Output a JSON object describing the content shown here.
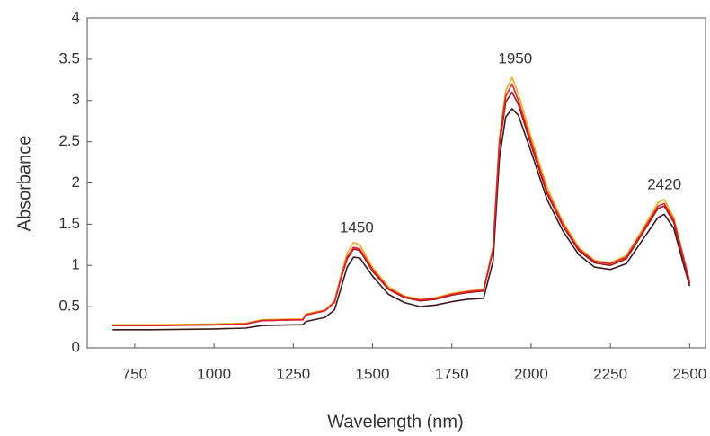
{
  "chart_data": {
    "type": "line",
    "xlabel": "Wavelength (nm)",
    "ylabel": "Absorbance",
    "xlim": [
      600,
      2550
    ],
    "ylim": [
      0,
      4
    ],
    "xticks": [
      750,
      1000,
      1250,
      1500,
      1750,
      2000,
      2250,
      2500
    ],
    "yticks": [
      0,
      0.5,
      1,
      1.5,
      2,
      2.5,
      3,
      3.5,
      4
    ],
    "grid": false,
    "x": [
      680,
      800,
      1000,
      1100,
      1150,
      1250,
      1280,
      1290,
      1350,
      1380,
      1400,
      1420,
      1440,
      1460,
      1500,
      1550,
      1600,
      1650,
      1700,
      1750,
      1800,
      1850,
      1880,
      1900,
      1920,
      1940,
      1960,
      2000,
      2050,
      2100,
      2150,
      2200,
      2250,
      2300,
      2350,
      2400,
      2420,
      2450,
      2480,
      2500
    ],
    "series": [
      {
        "color": "#3a1a1a",
        "values": [
          0.22,
          0.22,
          0.23,
          0.24,
          0.27,
          0.28,
          0.28,
          0.32,
          0.37,
          0.46,
          0.72,
          0.98,
          1.1,
          1.09,
          0.87,
          0.65,
          0.55,
          0.5,
          0.52,
          0.56,
          0.59,
          0.6,
          1.05,
          2.3,
          2.8,
          2.9,
          2.82,
          2.38,
          1.8,
          1.42,
          1.13,
          0.98,
          0.95,
          1.02,
          1.3,
          1.58,
          1.62,
          1.45,
          1.02,
          0.75
        ]
      },
      {
        "color": "#e8b020",
        "values": [
          0.28,
          0.28,
          0.29,
          0.3,
          0.34,
          0.35,
          0.35,
          0.41,
          0.46,
          0.57,
          0.88,
          1.15,
          1.28,
          1.25,
          0.98,
          0.74,
          0.63,
          0.59,
          0.61,
          0.66,
          0.69,
          0.71,
          1.22,
          2.55,
          3.12,
          3.28,
          3.08,
          2.56,
          1.95,
          1.53,
          1.22,
          1.06,
          1.03,
          1.12,
          1.43,
          1.76,
          1.8,
          1.58,
          1.12,
          0.8
        ]
      },
      {
        "color": "#a01818",
        "values": [
          0.27,
          0.27,
          0.28,
          0.29,
          0.33,
          0.34,
          0.34,
          0.4,
          0.45,
          0.55,
          0.84,
          1.08,
          1.2,
          1.18,
          0.93,
          0.71,
          0.61,
          0.57,
          0.59,
          0.64,
          0.67,
          0.69,
          1.18,
          2.45,
          2.98,
          3.1,
          2.95,
          2.46,
          1.87,
          1.48,
          1.18,
          1.03,
          1.0,
          1.08,
          1.38,
          1.69,
          1.72,
          1.52,
          1.08,
          0.78
        ]
      },
      {
        "color": "#e02030",
        "values": [
          0.27,
          0.27,
          0.28,
          0.29,
          0.33,
          0.34,
          0.34,
          0.4,
          0.45,
          0.55,
          0.85,
          1.1,
          1.22,
          1.2,
          0.95,
          0.72,
          0.62,
          0.58,
          0.6,
          0.65,
          0.68,
          0.7,
          1.2,
          2.5,
          3.05,
          3.2,
          3.0,
          2.5,
          1.9,
          1.5,
          1.2,
          1.05,
          1.02,
          1.1,
          1.4,
          1.72,
          1.75,
          1.55,
          1.1,
          0.8
        ]
      }
    ],
    "annotations": [
      {
        "text": "1450",
        "x": 1450,
        "y": 1.45
      },
      {
        "text": "1950",
        "x": 1950,
        "y": 3.5
      },
      {
        "text": "2420",
        "x": 2420,
        "y": 1.97
      }
    ]
  }
}
